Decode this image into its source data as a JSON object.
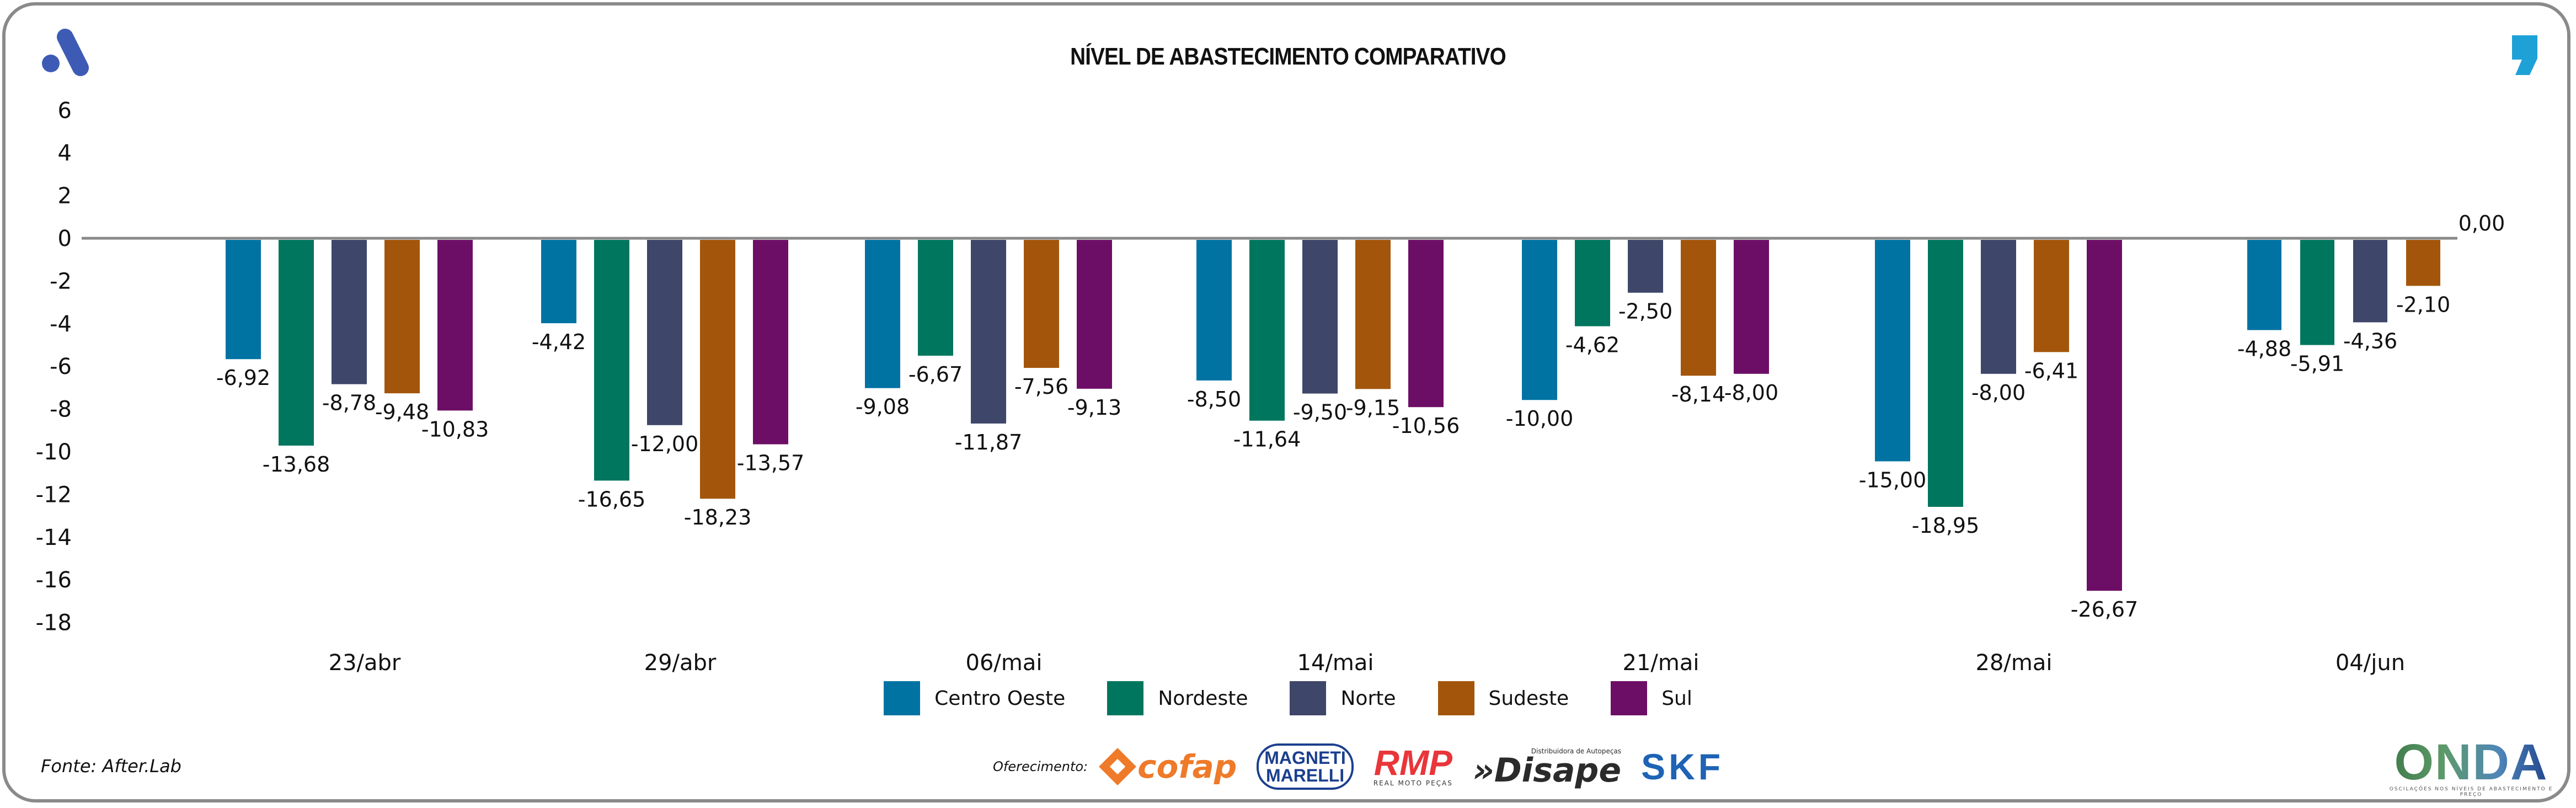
{
  "header": {
    "title": "NÍVEL DE ABASTECIMENTO COMPARATIVO",
    "logo_left": "afterlab-a-logo-icon",
    "logo_right": "comma-logo-icon"
  },
  "chart_data": {
    "type": "bar",
    "title": "NÍVEL DE ABASTECIMENTO COMPARATIVO",
    "xlabel": "",
    "ylabel": "",
    "ylim": [
      -18,
      6
    ],
    "yticks": [
      6,
      4,
      2,
      0,
      -2,
      -4,
      -6,
      -8,
      -10,
      -12,
      -14,
      -16,
      -18
    ],
    "grid": false,
    "legend_position": "bottom",
    "categories": [
      "23/abr",
      "29/abr",
      "06/mai",
      "14/mai",
      "21/mai",
      "28/mai",
      "04/jun"
    ],
    "series": [
      {
        "name": "Centro Oeste",
        "color": "#0073a3",
        "values": [
          -6.92,
          -4.42,
          -9.08,
          -8.5,
          -10.0,
          -15.0,
          -4.88
        ],
        "labels": [
          "-6,92",
          "-4,42",
          "-9,08",
          "-8,50",
          "-10,00",
          "-15,00",
          "-4,88"
        ]
      },
      {
        "name": "Nordeste",
        "color": "#00765e",
        "values": [
          -13.68,
          -16.65,
          -6.67,
          -11.64,
          -4.62,
          -18.95,
          -5.91
        ],
        "labels": [
          "-13,68",
          "-16,65",
          "-6,67",
          "-11,64",
          "-4,62",
          "-18,95",
          "-5,91"
        ]
      },
      {
        "name": "Norte",
        "color": "#3e4669",
        "values": [
          -8.78,
          -12.0,
          -11.87,
          -9.5,
          -2.5,
          -8.0,
          -4.36
        ],
        "labels": [
          "-8,78",
          "-12,00",
          "-11,87",
          "-9,50",
          "-2,50",
          "-8,00",
          "-4,36"
        ]
      },
      {
        "name": "Sudeste",
        "color": "#a3560b",
        "values": [
          -9.48,
          -18.23,
          -7.56,
          -9.15,
          -8.14,
          -6.41,
          -2.1
        ],
        "labels": [
          "-9,48",
          "-18,23",
          "-7,56",
          "-9,15",
          "-8,14",
          "-6,41",
          "-2,10"
        ]
      },
      {
        "name": "Sul",
        "color": "#6d0e66",
        "values": [
          -10.83,
          -13.57,
          -9.13,
          -10.56,
          -8.0,
          -26.67,
          0.0
        ],
        "labels": [
          "-10,83",
          "-13,57",
          "-9,13",
          "-10,56",
          "-8,00",
          "-26,67",
          "0,00"
        ]
      }
    ]
  },
  "legend": [
    {
      "label": "Centro Oeste",
      "color": "#0073a3"
    },
    {
      "label": "Nordeste",
      "color": "#00765e"
    },
    {
      "label": "Norte",
      "color": "#3e4669"
    },
    {
      "label": "Sudeste",
      "color": "#a3560b"
    },
    {
      "label": "Sul",
      "color": "#6d0e66"
    }
  ],
  "footer": {
    "source": "Fonte: After.Lab",
    "sponsor_label": "Oferecimento:",
    "sponsors": {
      "cofap": "cofap",
      "magneti_1": "MAGNETI",
      "magneti_2": "MARELLI",
      "rmp": "RMP",
      "rmp_sub": "REAL MOTO PEÇAS",
      "disape_sub": "Distribuidora de Autopeças",
      "disape": "»Disape",
      "skf": "SKF"
    },
    "onda": "ONDA",
    "onda_sub": "OSCILAÇÕES NOS NÍVEIS DE ABASTECIMENTO E PREÇO"
  }
}
